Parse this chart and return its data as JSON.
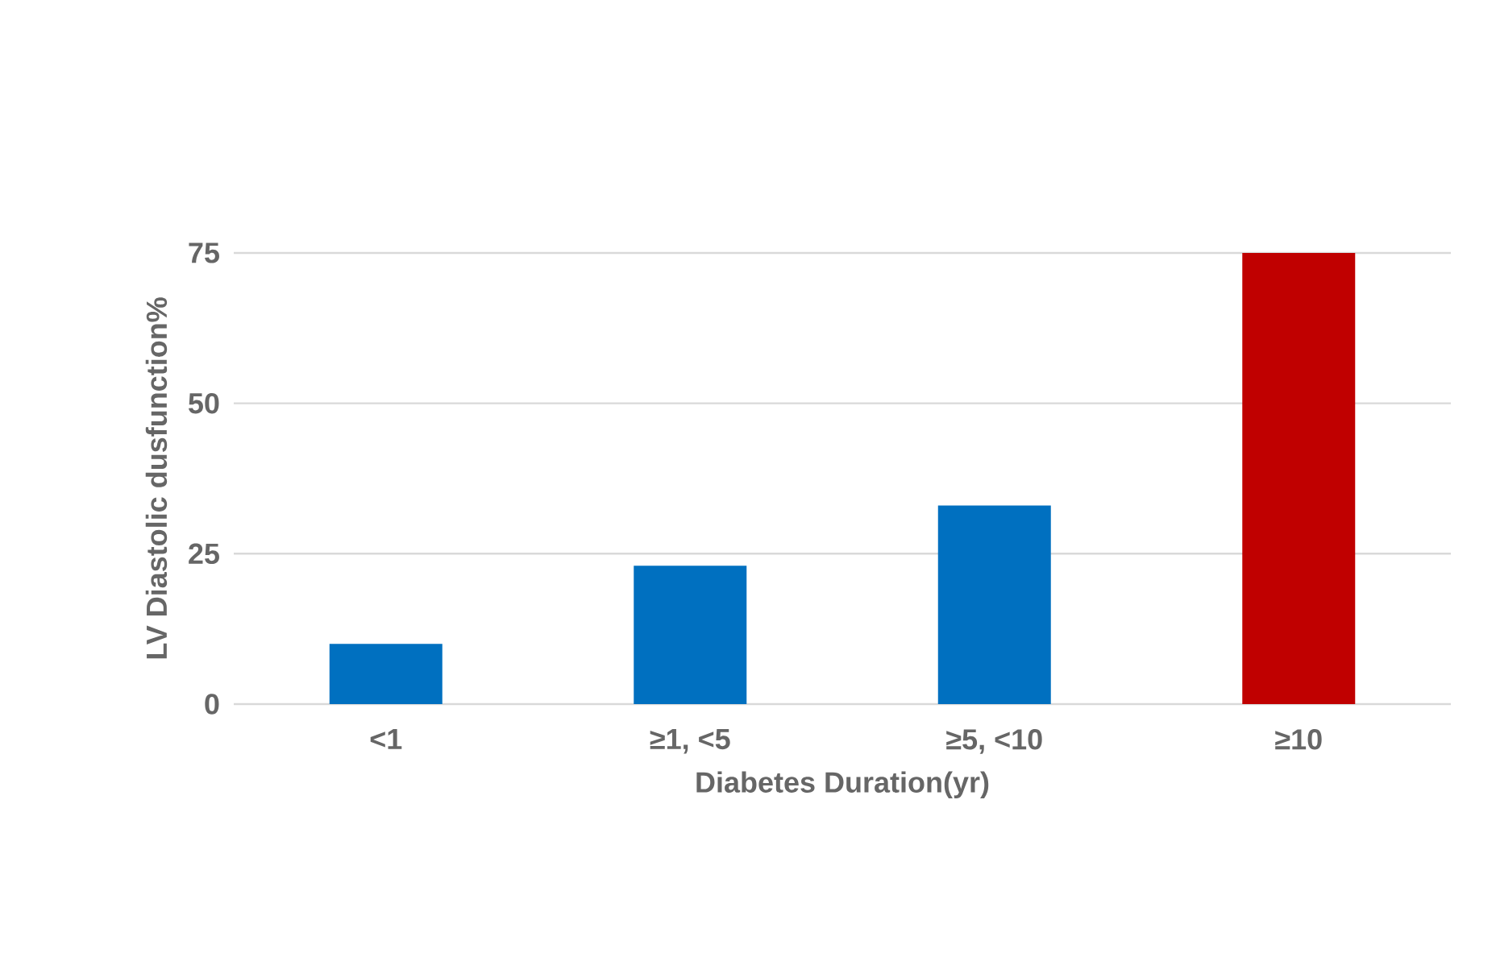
{
  "chart_data": {
    "type": "bar",
    "xlabel": "Diabetes Duration(yr)",
    "ylabel": "LV Diastolic dusfunction%",
    "categories": [
      "<1",
      "≥1, <5",
      "≥5, <10",
      "≥10"
    ],
    "values": [
      10,
      23,
      33,
      75
    ],
    "colors": [
      "#0070c0",
      "#0070c0",
      "#0070c0",
      "#c00000"
    ],
    "ylim": [
      0,
      75
    ],
    "yticks": [
      0,
      25,
      50,
      75
    ],
    "grid": "y"
  }
}
